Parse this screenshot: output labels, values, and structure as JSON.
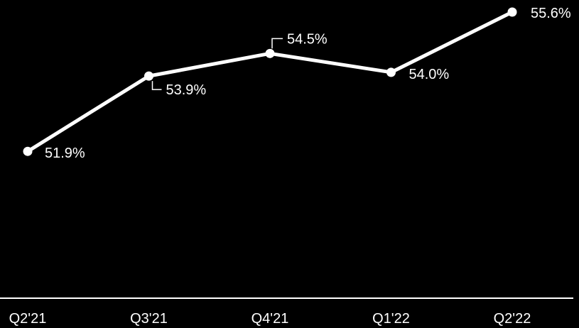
{
  "chart_data": {
    "type": "line",
    "categories": [
      "Q2'21",
      "Q3'21",
      "Q4'21",
      "Q1'22",
      "Q2'22"
    ],
    "series": [
      {
        "values": [
          51.9,
          53.9,
          54.5,
          54.0,
          55.6
        ],
        "labels": [
          "51.9%",
          "53.9%",
          "54.5%",
          "54.0%",
          "55.6%"
        ]
      }
    ],
    "ylim": [
      48.0,
      55.6
    ],
    "grid": false,
    "legend": "none",
    "colors": {
      "background": "#000000",
      "line": "#ffffff",
      "text": "#ffffff"
    }
  }
}
